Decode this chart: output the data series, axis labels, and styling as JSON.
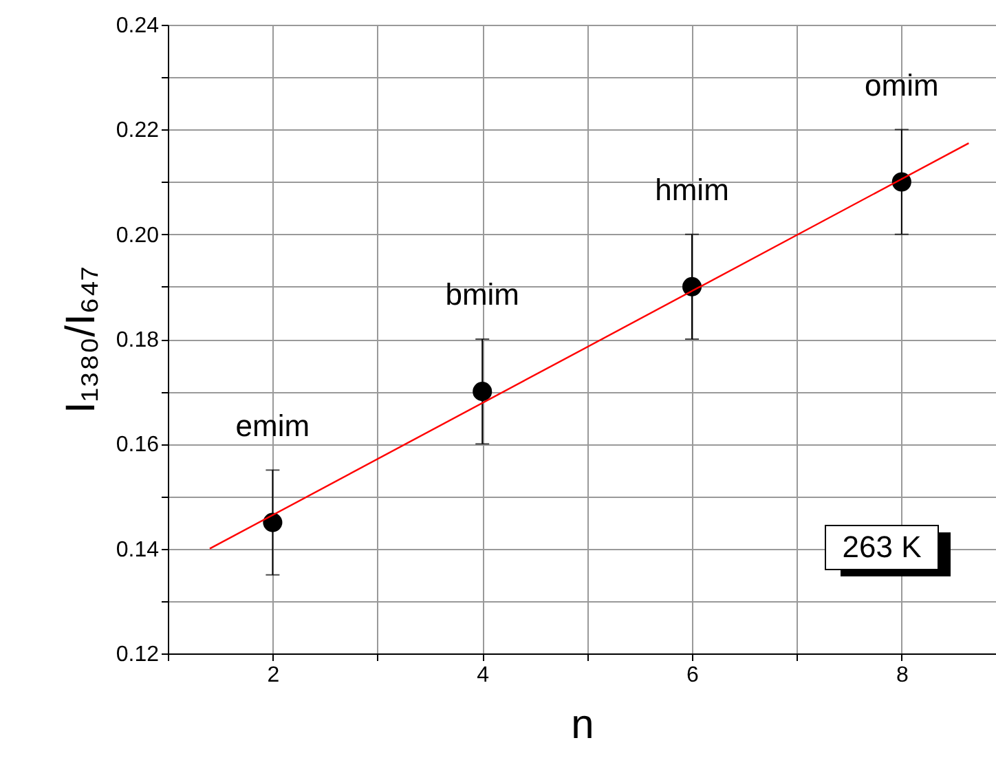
{
  "chart_data": {
    "type": "scatter",
    "xlabel": "n",
    "ylabel": "I₁₃₈₀/I₆₄₇",
    "xlim": [
      1,
      8.9
    ],
    "ylim": [
      0.12,
      0.24
    ],
    "xticks": [
      {
        "value": 1,
        "label": null
      },
      2,
      {
        "value": 3,
        "label": null
      },
      4,
      {
        "value": 5,
        "label": null
      },
      6,
      {
        "value": 7,
        "label": null
      },
      8
    ],
    "yticks": [
      0.12,
      {
        "value": 0.13,
        "label": null
      },
      0.14,
      {
        "value": 0.15,
        "label": null
      },
      0.16,
      {
        "value": 0.17,
        "label": null
      },
      0.18,
      {
        "value": 0.19,
        "label": null
      },
      {
        "value": 0.2,
        "label": "0.20"
      },
      {
        "value": 0.21,
        "label": null
      },
      0.22,
      {
        "value": 0.23,
        "label": null
      },
      0.24
    ],
    "grid": true,
    "marker": "circle",
    "series": [
      {
        "color": "#000000",
        "x": [
          2,
          4,
          6,
          8
        ],
        "values": [
          0.145,
          0.17,
          0.19,
          0.21
        ],
        "errors": [
          0.01,
          0.01,
          0.01,
          0.01
        ]
      },
      {
        "type": "line",
        "color": "#ff0000",
        "x": [
          1.4,
          8.64
        ],
        "values": [
          0.14,
          0.2174
        ],
        "line_style": "solid",
        "marker": "none"
      }
    ],
    "annotations": [
      "emim",
      "bmim",
      "hmim",
      "omim",
      "263 K"
    ]
  }
}
